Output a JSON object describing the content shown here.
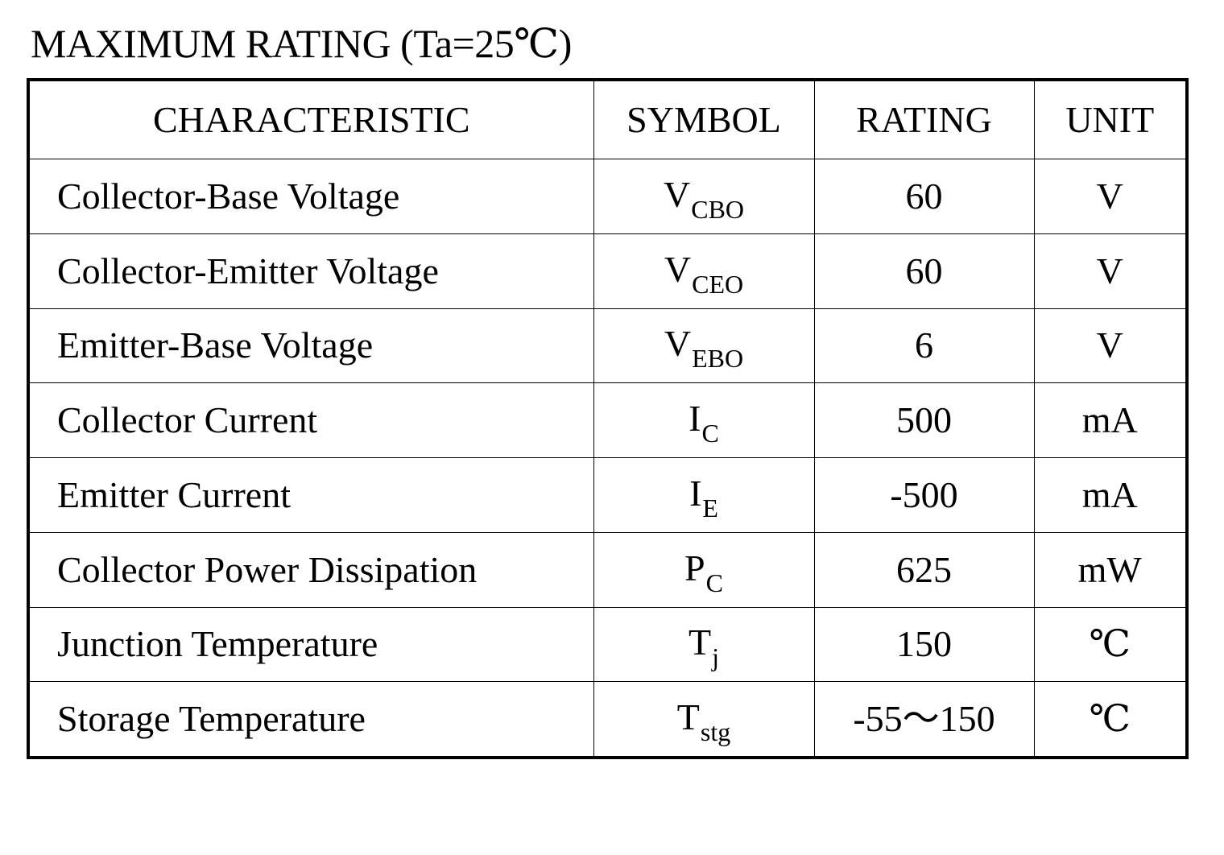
{
  "title": "MAXIMUM RATING  (Ta=25℃)",
  "table": {
    "headers": {
      "characteristic": "CHARACTERISTIC",
      "symbol": "SYMBOL",
      "rating": "RATING",
      "unit": "UNIT"
    },
    "rows": [
      {
        "characteristic": "Collector-Base Voltage",
        "symbol_main": "V",
        "symbol_sub": "CBO",
        "rating": "60",
        "unit": "V"
      },
      {
        "characteristic": "Collector-Emitter Voltage",
        "symbol_main": "V",
        "symbol_sub": "CEO",
        "rating": "60",
        "unit": "V"
      },
      {
        "characteristic": "Emitter-Base Voltage",
        "symbol_main": "V",
        "symbol_sub": "EBO",
        "rating": "6",
        "unit": "V"
      },
      {
        "characteristic": "Collector Current",
        "symbol_main": "I",
        "symbol_sub": "C",
        "rating": "500",
        "unit": "mA"
      },
      {
        "characteristic": "Emitter Current",
        "symbol_main": "I",
        "symbol_sub": "E",
        "rating": "-500",
        "unit": "mA"
      },
      {
        "characteristic": "Collector Power Dissipation",
        "symbol_main": "P",
        "symbol_sub": "C",
        "rating": "625",
        "unit": "mW"
      },
      {
        "characteristic": "Junction Temperature",
        "symbol_main": "T",
        "symbol_sub": "j",
        "rating": "150",
        "unit": "℃"
      },
      {
        "characteristic": "Storage Temperature",
        "symbol_main": "T",
        "symbol_sub": "stg",
        "rating": "-55～150",
        "unit": "℃"
      }
    ]
  }
}
